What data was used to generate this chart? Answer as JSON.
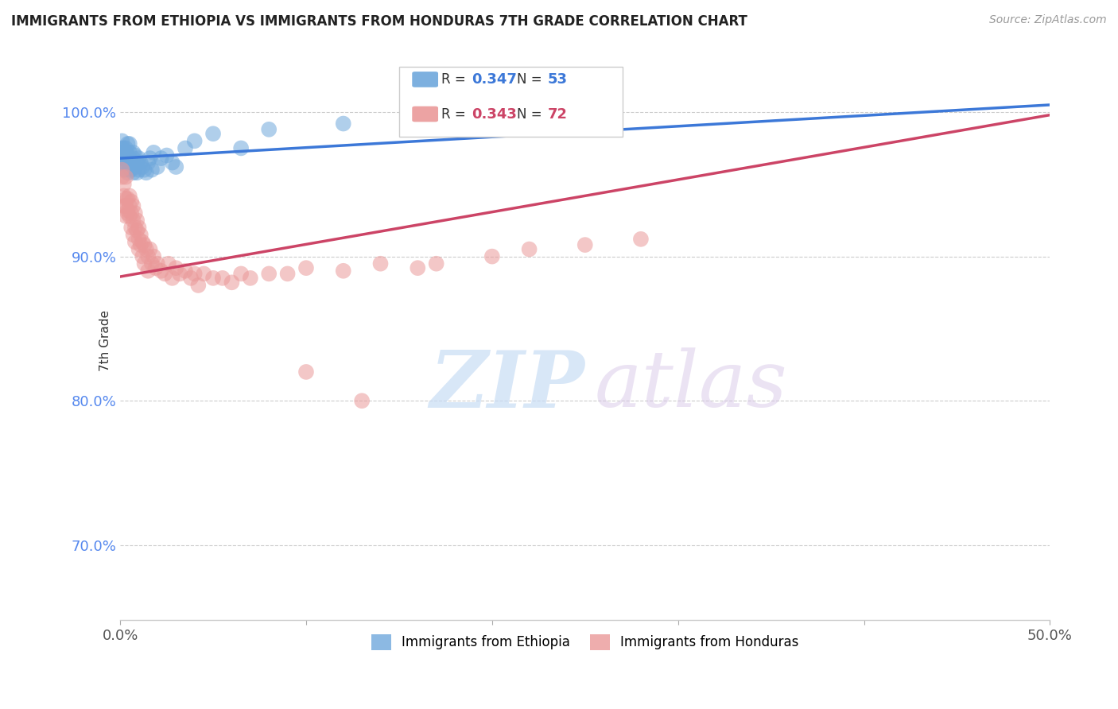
{
  "title": "IMMIGRANTS FROM ETHIOPIA VS IMMIGRANTS FROM HONDURAS 7TH GRADE CORRELATION CHART",
  "source": "Source: ZipAtlas.com",
  "ylabel": "7th Grade",
  "xlim": [
    0.0,
    0.5
  ],
  "ylim": [
    0.648,
    1.035
  ],
  "xticks": [
    0.0,
    0.1,
    0.2,
    0.3,
    0.4,
    0.5
  ],
  "xtick_labels": [
    "0.0%",
    "",
    "",
    "",
    "",
    "50.0%"
  ],
  "ytick_labels": [
    "70.0%",
    "80.0%",
    "90.0%",
    "100.0%"
  ],
  "yticks": [
    0.7,
    0.8,
    0.9,
    1.0
  ],
  "ethiopia_R": 0.347,
  "ethiopia_N": 53,
  "honduras_R": 0.343,
  "honduras_N": 72,
  "ethiopia_color": "#6fa8dc",
  "honduras_color": "#ea9999",
  "ethiopia_line_color": "#3c78d8",
  "honduras_line_color": "#cc4466",
  "legend_label_ethiopia": "Immigrants from Ethiopia",
  "legend_label_honduras": "Immigrants from Honduras",
  "ethiopia_line_x0": 0.0,
  "ethiopia_line_y0": 0.968,
  "ethiopia_line_x1": 0.5,
  "ethiopia_line_y1": 1.005,
  "honduras_line_x0": 0.0,
  "honduras_line_y0": 0.886,
  "honduras_line_x1": 0.5,
  "honduras_line_y1": 0.998,
  "ethiopia_x": [
    0.001,
    0.001,
    0.001,
    0.001,
    0.002,
    0.002,
    0.002,
    0.002,
    0.002,
    0.003,
    0.003,
    0.003,
    0.003,
    0.004,
    0.004,
    0.004,
    0.004,
    0.005,
    0.005,
    0.005,
    0.005,
    0.006,
    0.006,
    0.007,
    0.007,
    0.007,
    0.008,
    0.008,
    0.009,
    0.009,
    0.01,
    0.01,
    0.011,
    0.012,
    0.013,
    0.014,
    0.015,
    0.016,
    0.017,
    0.018,
    0.02,
    0.022,
    0.025,
    0.028,
    0.03,
    0.035,
    0.04,
    0.05,
    0.065,
    0.08,
    0.12,
    0.16,
    0.23
  ],
  "ethiopia_y": [
    0.975,
    0.968,
    0.972,
    0.98,
    0.97,
    0.965,
    0.975,
    0.96,
    0.968,
    0.972,
    0.96,
    0.968,
    0.975,
    0.962,
    0.97,
    0.978,
    0.958,
    0.968,
    0.972,
    0.96,
    0.978,
    0.965,
    0.96,
    0.968,
    0.972,
    0.958,
    0.962,
    0.97,
    0.965,
    0.958,
    0.96,
    0.968,
    0.965,
    0.962,
    0.96,
    0.958,
    0.965,
    0.968,
    0.96,
    0.972,
    0.962,
    0.968,
    0.97,
    0.965,
    0.962,
    0.975,
    0.98,
    0.985,
    0.975,
    0.988,
    0.992,
    0.988,
    0.995
  ],
  "honduras_x": [
    0.001,
    0.001,
    0.002,
    0.002,
    0.002,
    0.003,
    0.003,
    0.003,
    0.003,
    0.004,
    0.004,
    0.004,
    0.005,
    0.005,
    0.005,
    0.006,
    0.006,
    0.006,
    0.007,
    0.007,
    0.007,
    0.008,
    0.008,
    0.008,
    0.009,
    0.009,
    0.01,
    0.01,
    0.01,
    0.011,
    0.011,
    0.012,
    0.012,
    0.013,
    0.013,
    0.014,
    0.015,
    0.015,
    0.016,
    0.017,
    0.018,
    0.019,
    0.02,
    0.022,
    0.024,
    0.026,
    0.028,
    0.03,
    0.032,
    0.035,
    0.038,
    0.04,
    0.042,
    0.045,
    0.05,
    0.055,
    0.06,
    0.065,
    0.07,
    0.08,
    0.09,
    0.1,
    0.12,
    0.14,
    0.16,
    0.17,
    0.2,
    0.22,
    0.25,
    0.28,
    0.1,
    0.13
  ],
  "honduras_y": [
    0.955,
    0.96,
    0.942,
    0.95,
    0.935,
    0.94,
    0.935,
    0.928,
    0.955,
    0.932,
    0.94,
    0.93,
    0.942,
    0.928,
    0.935,
    0.92,
    0.93,
    0.938,
    0.925,
    0.915,
    0.935,
    0.92,
    0.93,
    0.91,
    0.925,
    0.918,
    0.912,
    0.905,
    0.92,
    0.915,
    0.908,
    0.91,
    0.9,
    0.908,
    0.895,
    0.905,
    0.9,
    0.89,
    0.905,
    0.895,
    0.9,
    0.892,
    0.895,
    0.89,
    0.888,
    0.895,
    0.885,
    0.892,
    0.888,
    0.89,
    0.885,
    0.888,
    0.88,
    0.888,
    0.885,
    0.885,
    0.882,
    0.888,
    0.885,
    0.888,
    0.888,
    0.892,
    0.89,
    0.895,
    0.892,
    0.895,
    0.9,
    0.905,
    0.908,
    0.912,
    0.82,
    0.8
  ]
}
